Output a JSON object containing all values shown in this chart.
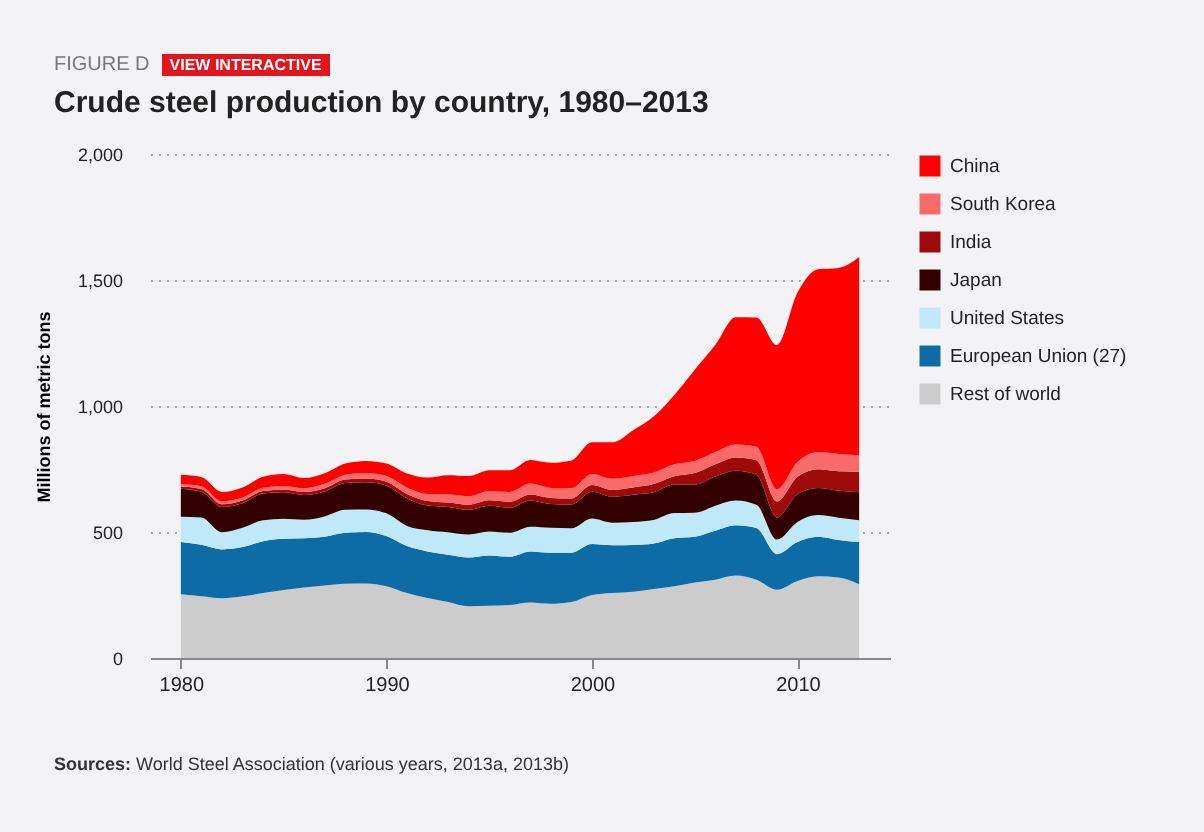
{
  "chart_data": {
    "type": "area",
    "title": "Crude steel production by country, 1980–2013",
    "ylabel": "Millions of metric tons",
    "stacked": true,
    "legend": "right",
    "grid": "y",
    "line_style": "dotted",
    "annotations": [
      "FIGURE D",
      "VIEW INTERACTIVE",
      "Sources: World Steel Association (various years, 2013a, 2013b)"
    ],
    "x": [
      1980,
      1981,
      1982,
      1983,
      1984,
      1985,
      1986,
      1987,
      1988,
      1989,
      1990,
      1991,
      1992,
      1993,
      1994,
      1995,
      1996,
      1997,
      1998,
      1999,
      2000,
      2001,
      2002,
      2003,
      2004,
      2005,
      2006,
      2007,
      2008,
      2009,
      2010,
      2011,
      2012,
      2013
    ],
    "xlim": [
      1978.5,
      2014.5
    ],
    "xticks": [
      1980,
      1990,
      2000,
      2010
    ],
    "ylim": [
      0,
      2000
    ],
    "yticks": [
      {
        "value": 0,
        "label": "0"
      },
      {
        "value": 500,
        "label": "500"
      },
      {
        "value": 1000,
        "label": "1,000"
      },
      {
        "value": 1500,
        "label": "1,500"
      },
      {
        "value": 2000,
        "label": "2,000"
      }
    ],
    "series": [
      {
        "name": "Rest of world",
        "color": "#cccccc",
        "values": [
          253,
          245,
          237,
          245,
          258,
          270,
          280,
          288,
          295,
          296,
          285,
          258,
          238,
          222,
          205,
          207,
          210,
          220,
          215,
          222,
          250,
          258,
          263,
          274,
          285,
          300,
          311,
          327,
          311,
          271,
          306,
          324,
          319,
          293
        ]
      },
      {
        "name": "European Union (27)",
        "color": "#0d6ba6",
        "values": [
          207,
          204,
          194,
          195,
          205,
          203,
          195,
          193,
          202,
          204,
          199,
          186,
          185,
          188,
          194,
          200,
          192,
          203,
          203,
          196,
          202,
          189,
          185,
          180,
          190,
          181,
          194,
          200,
          205,
          141,
          154,
          157,
          149,
          167
        ]
      },
      {
        "name": "United States",
        "color": "#bfe9f9",
        "values": [
          101,
          109,
          68,
          77,
          84,
          80,
          74,
          81,
          91,
          89,
          90,
          80,
          84,
          89,
          91,
          95,
          95,
          98,
          99,
          97,
          102,
          90,
          92,
          94,
          100,
          95,
          99,
          98,
          92,
          58,
          80,
          86,
          89,
          87
        ]
      },
      {
        "name": "Japan",
        "color": "#330000",
        "values": [
          111,
          102,
          100,
          97,
          106,
          105,
          98,
          99,
          106,
          108,
          110,
          110,
          98,
          100,
          98,
          102,
          99,
          104,
          94,
          94,
          106,
          103,
          108,
          110,
          113,
          112,
          116,
          118,
          119,
          88,
          110,
          108,
          107,
          111
        ]
      },
      {
        "name": "India",
        "color": "#9c0a0a",
        "values": [
          9,
          11,
          11,
          11,
          10,
          11,
          12,
          13,
          14,
          15,
          15,
          17,
          18,
          18,
          20,
          22,
          24,
          24,
          24,
          24,
          27,
          27,
          29,
          32,
          33,
          46,
          49,
          53,
          58,
          63,
          69,
          74,
          77,
          81
        ]
      },
      {
        "name": "South Korea",
        "color": "#f96a6a",
        "values": [
          9,
          11,
          12,
          12,
          13,
          14,
          15,
          17,
          19,
          22,
          23,
          26,
          28,
          33,
          34,
          37,
          39,
          43,
          40,
          41,
          43,
          44,
          45,
          46,
          48,
          48,
          48,
          51,
          53,
          49,
          59,
          68,
          69,
          66
        ]
      },
      {
        "name": "China",
        "color": "#fe0000",
        "values": [
          37,
          36,
          37,
          40,
          43,
          47,
          40,
          42,
          45,
          48,
          50,
          55,
          65,
          75,
          80,
          82,
          86,
          94,
          100,
          110,
          126,
          145,
          182,
          222,
          274,
          362,
          425,
          505,
          513,
          572,
          672,
          726,
          738,
          786
        ]
      }
    ]
  }
}
